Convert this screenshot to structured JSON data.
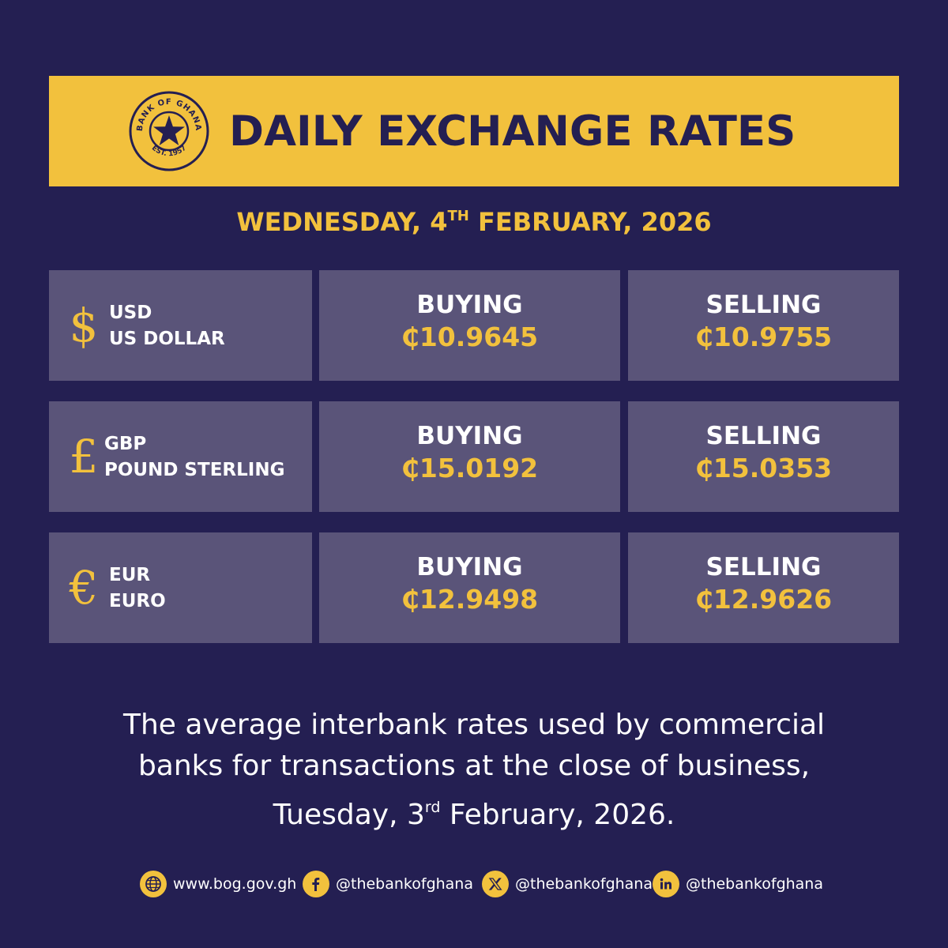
{
  "banner": {
    "logo": {
      "ring_text": "BANK OF GHANA",
      "est_text": "EST. 1957",
      "icon": "star-icon"
    },
    "title": "DAILY EXCHANGE RATES"
  },
  "date": {
    "prefix": "WEDNESDAY, 4",
    "suffix": "TH",
    "rest": " FEBRUARY, 2026"
  },
  "rates": [
    {
      "symbol": "$",
      "code": "USD",
      "name": "US DOLLAR",
      "buying_label": "BUYING",
      "buying": "₵10.9645",
      "selling_label": "SELLING",
      "selling": "₵10.9755"
    },
    {
      "symbol": "£",
      "code": "GBP",
      "name": "POUND STERLING",
      "buying_label": "BUYING",
      "buying": "₵15.0192",
      "selling_label": "SELLING",
      "selling": "₵15.0353"
    },
    {
      "symbol": "€",
      "code": "EUR",
      "name": "EURO",
      "buying_label": "BUYING",
      "buying": "₵12.9498",
      "selling_label": "SELLING",
      "selling": "₵12.9626"
    }
  ],
  "footer": {
    "line1": "The average interbank rates used by commercial",
    "line2": "banks for transactions at the close of business,",
    "line3_prefix": "Tuesday, 3",
    "line3_sup": "rd",
    "line3_rest": " February, 2026."
  },
  "socials": [
    {
      "icon": "globe-icon",
      "text": "www.bog.gov.gh"
    },
    {
      "icon": "facebook-icon",
      "text": "@thebankofghana"
    },
    {
      "icon": "x-icon",
      "text": "@thebankofghana"
    },
    {
      "icon": "linkedin-icon",
      "text": "@thebankofghana"
    }
  ],
  "colors": {
    "background": "#241f52",
    "accent": "#f2c13d",
    "panel": "#5a5479",
    "text": "#ffffff"
  }
}
